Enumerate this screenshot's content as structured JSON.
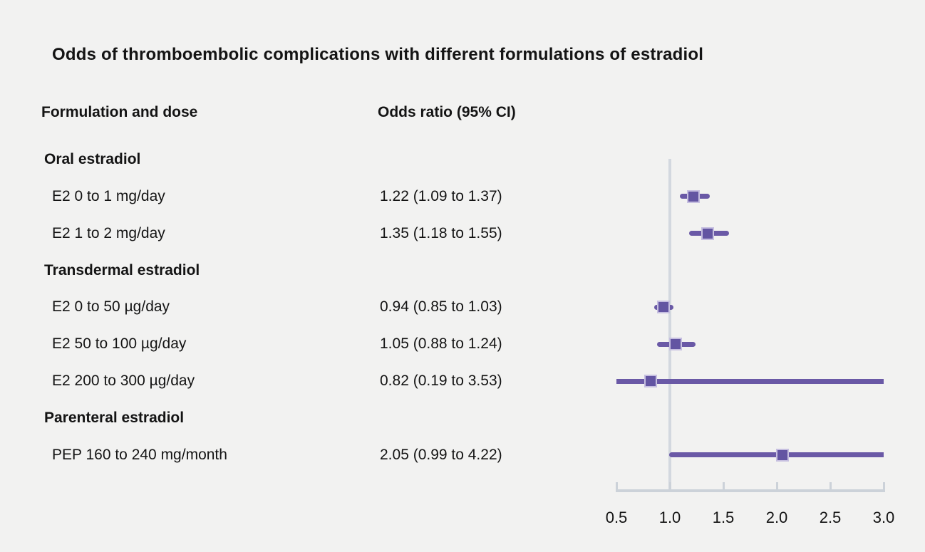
{
  "title": "Odds of thromboembolic complications with different formulations of estradiol",
  "columns": {
    "formulation": "Formulation and dose",
    "odds_ratio": "Odds ratio (95% CI)"
  },
  "chart_data": {
    "type": "forest",
    "title": "Odds of thromboembolic complications with different formulations of estradiol",
    "column_headers": [
      "Formulation and dose",
      "Odds ratio (95% CI)"
    ],
    "groups": [
      {
        "label": "Oral estradiol",
        "rows": [
          {
            "label": "E2 0 to 1 mg/day",
            "display": "1.22 (1.09 to 1.37)",
            "or": 1.22,
            "lo": 1.09,
            "hi": 1.37
          },
          {
            "label": "E2 1 to 2 mg/day",
            "display": "1.35 (1.18 to 1.55)",
            "or": 1.35,
            "lo": 1.18,
            "hi": 1.55
          }
        ]
      },
      {
        "label": "Transdermal estradiol",
        "rows": [
          {
            "label": "E2 0 to 50 µg/day",
            "display": "0.94 (0.85 to 1.03)",
            "or": 0.94,
            "lo": 0.85,
            "hi": 1.03
          },
          {
            "label": "E2 50 to 100 µg/day",
            "display": "1.05 (0.88 to 1.24)",
            "or": 1.05,
            "lo": 0.88,
            "hi": 1.24
          },
          {
            "label": "E2 200 to 300 µg/day",
            "display": "0.82 (0.19 to 3.53)",
            "or": 0.82,
            "lo": 0.19,
            "hi": 3.53
          }
        ]
      },
      {
        "label": "Parenteral estradiol",
        "rows": [
          {
            "label": "PEP 160 to 240 mg/month",
            "display": "2.05 (0.99 to 4.22)",
            "or": 2.05,
            "lo": 0.99,
            "hi": 4.22
          }
        ]
      }
    ],
    "x_axis": {
      "min": 0.5,
      "max": 3.0,
      "ticks": [
        0.5,
        1.0,
        1.5,
        2.0,
        2.5,
        3.0
      ],
      "tick_labels": [
        "0.5",
        "1.0",
        "1.5",
        "2.0",
        "2.5",
        "3.0"
      ],
      "reference_line": 1.0,
      "scale": "linear"
    },
    "legend": null,
    "grid": false,
    "colors": {
      "background": "#f2f2f1",
      "text": "#141414",
      "ci_line": "#6a59a6",
      "marker_fill": "#6355a2",
      "marker_border": "#c6bfe0",
      "reference_line": "#d3d8df",
      "axis_line": "#ccd2d9"
    }
  }
}
